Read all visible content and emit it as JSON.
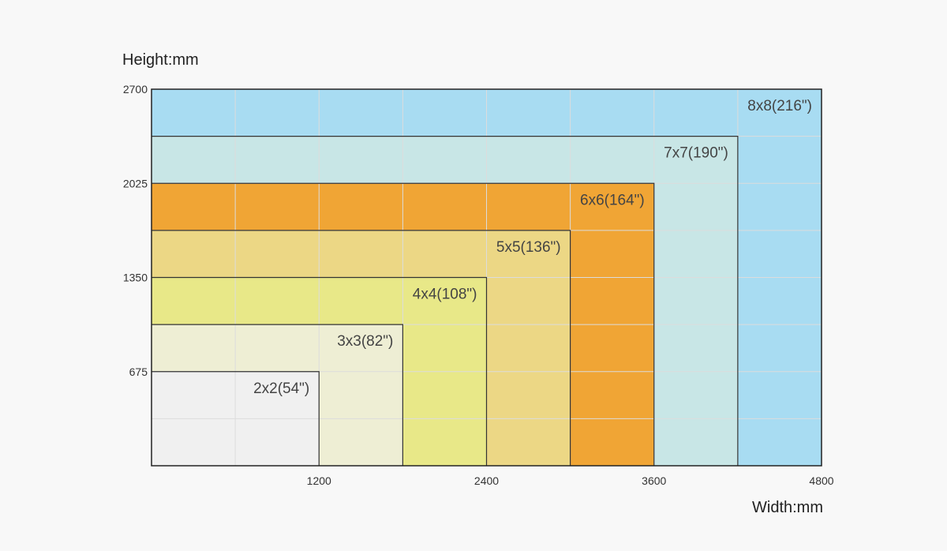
{
  "chart_data": {
    "type": "nested-rectangles",
    "xlabel": "Width:mm",
    "ylabel": "Height:mm",
    "xlim": [
      0,
      4800
    ],
    "ylim": [
      0,
      2700
    ],
    "x_ticks": [
      1200,
      2400,
      3600,
      4800
    ],
    "y_ticks": [
      675,
      1350,
      2025,
      2700
    ],
    "grid": true,
    "grid_x_step": 600,
    "grid_y_step": 337.5,
    "series": [
      {
        "name": "8x8(216\")",
        "width": 4800,
        "height": 2700,
        "color": "#a8dcf2"
      },
      {
        "name": "7x7(190\")",
        "width": 4200,
        "height": 2362.5,
        "color": "#c8e6e6"
      },
      {
        "name": "6x6(164\")",
        "width": 3600,
        "height": 2025,
        "color": "#f0a535"
      },
      {
        "name": "5x5(136\")",
        "width": 3000,
        "height": 1687.5,
        "color": "#ecd785"
      },
      {
        "name": "4x4(108\")",
        "width": 2400,
        "height": 1350,
        "color": "#e8e888"
      },
      {
        "name": "3x3(82\")",
        "width": 1800,
        "height": 1012.5,
        "color": "#eeeed4"
      },
      {
        "name": "2x2(54\")",
        "width": 1200,
        "height": 675,
        "color": "#f0f0f0"
      }
    ]
  }
}
